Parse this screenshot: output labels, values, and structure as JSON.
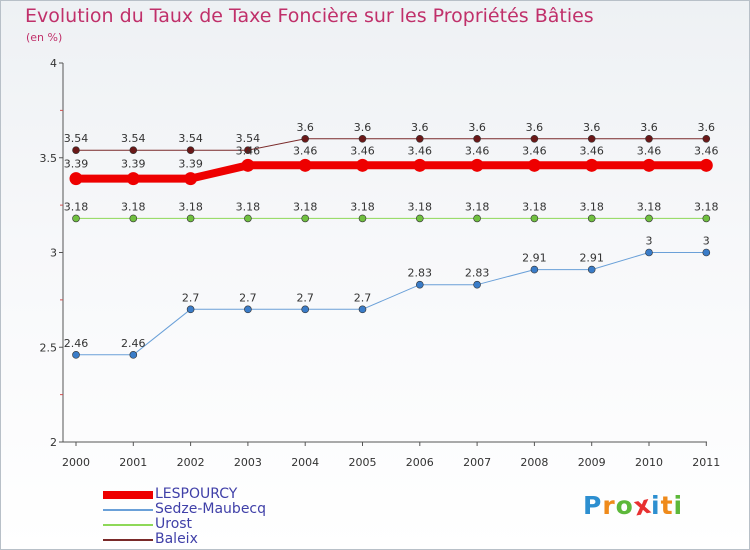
{
  "title": "Evolution du Taux de Taxe Foncière sur les Propriétés Bâties",
  "unit": "(en %)",
  "chart_data": {
    "type": "line",
    "title": "Evolution du Taux de Taxe Foncière sur les Propriétés Bâties",
    "ylabel": "(en %)",
    "xlabel": "",
    "ylim": [
      2,
      4
    ],
    "yticks": [
      "2",
      "2.5",
      "3",
      "3.5",
      "4"
    ],
    "categories": [
      "2000",
      "2001",
      "2002",
      "2003",
      "2004",
      "2005",
      "2006",
      "2007",
      "2008",
      "2009",
      "2010",
      "2011"
    ],
    "series": [
      {
        "name": "Baleix",
        "color": "#7a2a2a",
        "marker": "#6a1818",
        "width": 1,
        "values": [
          3.54,
          3.54,
          3.54,
          3.54,
          3.6,
          3.6,
          3.6,
          3.6,
          3.6,
          3.6,
          3.6,
          3.6
        ],
        "labels": [
          "3.54",
          "3.54",
          "3.54",
          "3.54",
          "3.6",
          "3.6",
          "3.6",
          "3.6",
          "3.6",
          "3.6",
          "3.6",
          "3.6"
        ]
      },
      {
        "name": "LESPOURCY",
        "color": "#ee0000",
        "marker": "#ee0000",
        "width": 8,
        "values": [
          3.39,
          3.39,
          3.39,
          3.46,
          3.46,
          3.46,
          3.46,
          3.46,
          3.46,
          3.46,
          3.46,
          3.46
        ],
        "labels": [
          "3.39",
          "3.39",
          "3.39",
          "3.46",
          "3.46",
          "3.46",
          "3.46",
          "3.46",
          "3.46",
          "3.46",
          "3.46",
          "3.46"
        ]
      },
      {
        "name": "Urost",
        "color": "#8ed858",
        "marker": "#70c040",
        "width": 1,
        "values": [
          3.18,
          3.18,
          3.18,
          3.18,
          3.18,
          3.18,
          3.18,
          3.18,
          3.18,
          3.18,
          3.18,
          3.18
        ],
        "labels": [
          "3.18",
          "3.18",
          "3.18",
          "3.18",
          "3.18",
          "3.18",
          "3.18",
          "3.18",
          "3.18",
          "3.18",
          "3.18",
          "3.18"
        ]
      },
      {
        "name": "Sedze-Maubecq",
        "color": "#6aa0d8",
        "marker": "#3a7cc8",
        "width": 1,
        "values": [
          2.46,
          2.46,
          2.7,
          2.7,
          2.7,
          2.7,
          2.83,
          2.83,
          2.91,
          2.91,
          3,
          3
        ],
        "labels": [
          "2.46",
          "2.46",
          "2.7",
          "2.7",
          "2.7",
          "2.7",
          "2.83",
          "2.83",
          "2.91",
          "2.91",
          "3",
          "3"
        ]
      }
    ]
  },
  "legend": [
    {
      "name": "LESPOURCY",
      "color": "#ee0000",
      "thickness": 8
    },
    {
      "name": "Sedze-Maubecq",
      "color": "#6aa0d8",
      "thickness": 2
    },
    {
      "name": "Urost",
      "color": "#8ed858",
      "thickness": 2
    },
    {
      "name": "Baleix",
      "color": "#7a2a2a",
      "thickness": 2
    }
  ],
  "logo": {
    "letters": [
      "P",
      "r",
      "o",
      "x",
      "i",
      "t",
      "i"
    ],
    "colors": [
      "#2d8fd0",
      "#ef8a1a",
      "#5db83a",
      "#e83030",
      "#2d8fd0",
      "#ef8a1a",
      "#5db83a"
    ]
  }
}
